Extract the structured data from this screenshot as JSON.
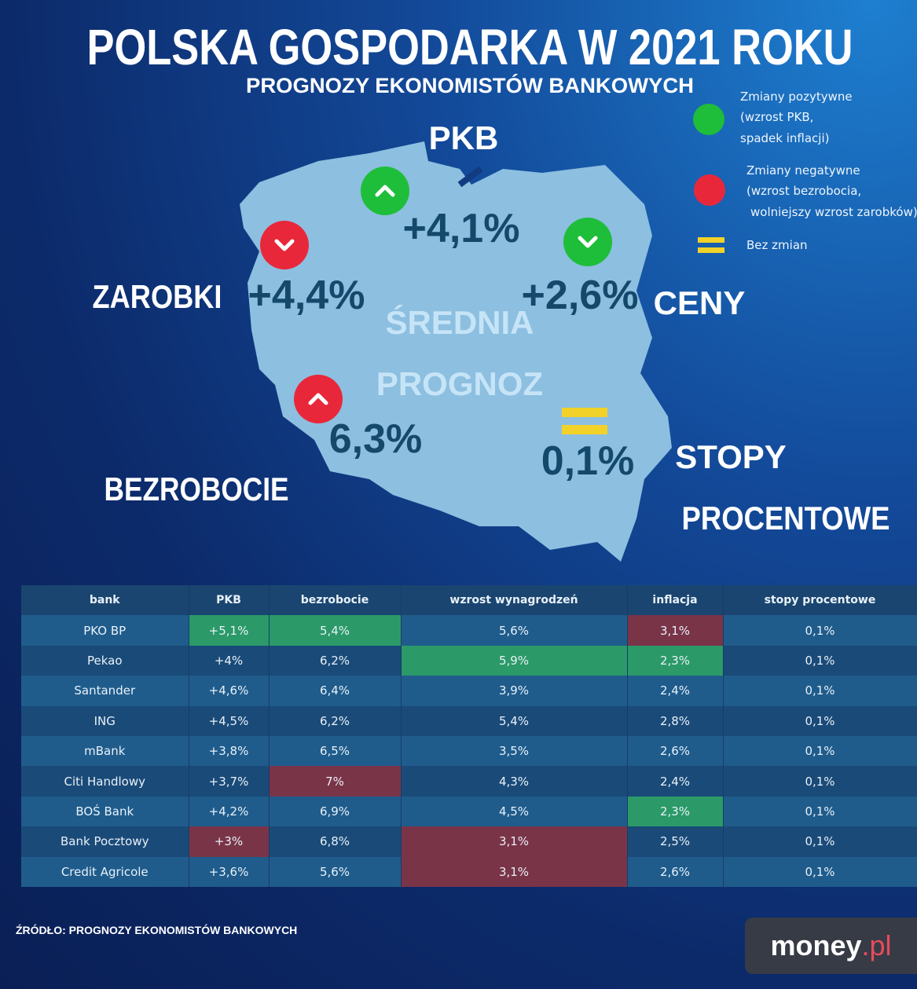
{
  "header": {
    "title": "POLSKA GOSPODARKA W 2021 ROKU",
    "subtitle": "PROGNOZY EKONOMISTÓW BANKOWYCH"
  },
  "legend": [
    {
      "lines": [
        "Zmiany pozytywne",
        "(wzrost PKB,",
        "spadek inflacji)"
      ]
    },
    {
      "lines": [
        "Zmiany negatywne",
        "(wzrost bezrobocia,",
        "wolniejszy wzrost zarobków)"
      ]
    },
    {
      "lines": [
        "Bez zmian"
      ]
    }
  ],
  "map": {
    "center": [
      "ŚREDNIA",
      "PROGNOZ"
    ],
    "pkb": {
      "label": "PKB",
      "value": "+4,1%"
    },
    "zarobki": {
      "label": "ZAROBKI",
      "value": "+4,4%"
    },
    "ceny": {
      "label": "CENY",
      "value": "+2,6%"
    },
    "bezrobocie": {
      "label": "BEZROBOCIE",
      "value": "6,3%"
    },
    "stopy": {
      "label": [
        "STOPY",
        "PROCENTOWE"
      ],
      "value": "0,1%"
    }
  },
  "table": {
    "headers": [
      "bank",
      "PKB",
      "bezrobocie",
      "wzrost wynagrodzeń",
      "inflacja",
      "stopy procentowe"
    ],
    "rows": [
      [
        "PKO BP",
        {
          "text": "+5,1%",
          "highlight": "green"
        },
        {
          "text": "5,4%",
          "highlight": "green"
        },
        "5,6%",
        {
          "text": "3,1%",
          "highlight": "red"
        },
        "0,1%"
      ],
      [
        "Pekao",
        "+4%",
        "6,2%",
        {
          "text": "5,9%",
          "highlight": "green"
        },
        {
          "text": "2,3%",
          "highlight": "green"
        },
        "0,1%"
      ],
      [
        "Santander",
        "+4,6%",
        "6,4%",
        "3,9%",
        "2,4%",
        "0,1%"
      ],
      [
        "ING",
        "+4,5%",
        "6,2%",
        "5,4%",
        "2,8%",
        "0,1%"
      ],
      [
        "mBank",
        "+3,8%",
        "6,5%",
        "3,5%",
        "2,6%",
        "0,1%"
      ],
      [
        "Citi Handlowy",
        "+3,7%",
        {
          "text": "7%",
          "highlight": "red"
        },
        "4,3%",
        "2,4%",
        "0,1%"
      ],
      [
        "BOŚ Bank",
        "+4,2%",
        "6,9%",
        "4,5%",
        {
          "text": "2,3%",
          "highlight": "green"
        },
        "0,1%"
      ],
      [
        "Bank Pocztowy",
        {
          "text": "+3%",
          "highlight": "red"
        },
        "6,8%",
        {
          "text": "3,1%",
          "highlight": "red"
        },
        "2,5%",
        "0,1%"
      ],
      [
        "Credit Agricole",
        "+3,6%",
        "5,6%",
        {
          "text": "3,1%",
          "highlight": "red"
        },
        "2,6%",
        "0,1%"
      ]
    ]
  },
  "source": "ŹRÓDŁO: PROGNOZY EKONOMISTÓW BANKOWYCH",
  "logo": {
    "name": "money",
    "suffix": ".pl"
  }
}
